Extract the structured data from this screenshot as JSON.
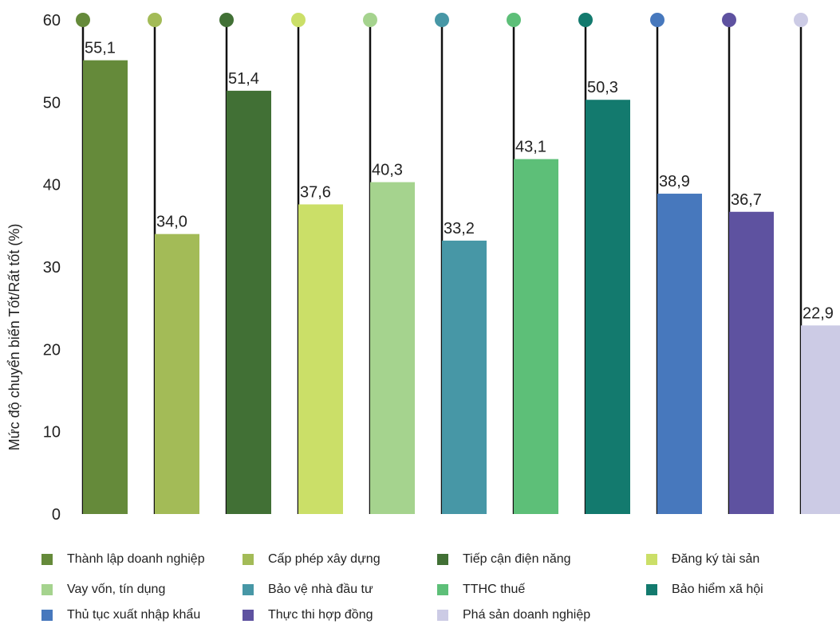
{
  "chart_data": {
    "type": "bar",
    "ylabel": "Mức độ chuyển biến Tốt/Rất tốt (%)",
    "ylim": [
      0,
      60
    ],
    "yticks": [
      "0",
      "10",
      "20",
      "30",
      "40",
      "50",
      "60"
    ],
    "grid": false,
    "legend_position": "bottom",
    "categories": [
      "Thành lập doanh nghiệp",
      "Cấp phép xây dựng",
      "Tiếp cận điện năng",
      "Đăng ký tài sản",
      "Vay vốn, tín dụng",
      "Bảo vệ nhà đầu tư",
      "TTHC thuế",
      "Bảo hiểm xã hội",
      "Thủ tục xuất nhập khẩu",
      "Thực thi hợp đồng",
      "Phá sản doanh nghiệp"
    ],
    "values": [
      55.1,
      34.0,
      51.4,
      37.6,
      40.3,
      33.2,
      43.1,
      50.3,
      38.9,
      36.7,
      22.9
    ],
    "value_labels": [
      "55,1",
      "34,0",
      "51,4",
      "37,6",
      "40,3",
      "33,2",
      "43,1",
      "50,3",
      "38,9",
      "36,7",
      "22,9"
    ],
    "colors": [
      "#658a3a",
      "#a3bb57",
      "#417035",
      "#cbdf68",
      "#a5d38e",
      "#4797a6",
      "#5dbf78",
      "#137a6e",
      "#4778bd",
      "#5e52a0",
      "#cccbe5"
    ]
  }
}
